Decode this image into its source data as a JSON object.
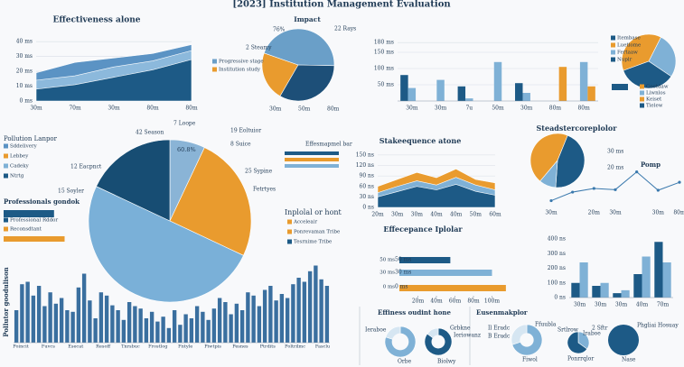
{
  "title": "[2023] Institution Management Evaluation",
  "chart_data": [
    {
      "type": "area",
      "title": "Effectiveness alone",
      "categories": [
        "30m",
        "70m",
        "30m",
        "80m",
        "80m"
      ],
      "series": [
        {
          "color": "#5b93c4",
          "values": [
            19,
            26,
            29,
            32,
            38
          ]
        },
        {
          "color": "#8cb9dc",
          "values": [
            14,
            17,
            23,
            27,
            34
          ]
        },
        {
          "color": "#1d5a86",
          "values": [
            8,
            11,
            16,
            21,
            28
          ]
        }
      ],
      "ylim": [
        0,
        45
      ],
      "yticks": [
        {
          "value": 0,
          "label": "0 ms"
        },
        {
          "value": 10,
          "label": "10 ms"
        },
        {
          "value": 20,
          "label": "20 ms"
        },
        {
          "value": 30,
          "label": "30 ms"
        },
        {
          "value": 40,
          "label": "40 ms"
        }
      ],
      "grid": true
    },
    {
      "type": "pie",
      "title": "Impact",
      "values": [
        22,
        45,
        33
      ],
      "colors": [
        "#e99b2e",
        "#6a9fc8",
        "#1d4f78"
      ],
      "texts": [
        "76%",
        "22 Rays",
        "2 Steamy",
        "30m",
        "50m",
        "80m"
      ],
      "legend": [
        {
          "label": "Progressive stage",
          "color": "#6a9fc8"
        },
        {
          "label": "Institution study",
          "color": "#e99b2e"
        }
      ]
    },
    {
      "type": "bar",
      "categories": [
        "30m",
        "30m",
        "7u",
        "50m",
        "30m",
        "80m",
        "80m"
      ],
      "series": [
        {
          "color": "#1d5a86",
          "values": [
            80,
            0,
            45,
            0,
            55,
            0,
            0
          ]
        },
        {
          "color": "#7fb1d6",
          "values": [
            40,
            65,
            8,
            120,
            25,
            0,
            120
          ]
        },
        {
          "color": "#e99b2e",
          "values": [
            0,
            0,
            0,
            0,
            0,
            105,
            45
          ]
        }
      ],
      "ylim": [
        0,
        200
      ],
      "yticks": [
        {
          "value": 50,
          "label": "50 ms"
        },
        {
          "value": 100,
          "label": "100 ms"
        },
        {
          "value": 150,
          "label": "150 ms"
        },
        {
          "value": 180,
          "label": "180 ms"
        }
      ],
      "grid": true
    },
    {
      "type": "pie",
      "values": [
        38,
        27,
        35
      ],
      "colors": [
        "#e99b2e",
        "#7fb1d6",
        "#1d5a86"
      ],
      "legend": [
        {
          "label": "Itembase",
          "color": "#1d5a86"
        },
        {
          "label": "Luetlome",
          "color": "#e99b2e"
        },
        {
          "label": "Fertaaw",
          "color": "#7fb1d6"
        },
        {
          "label": "Nuplr",
          "color": "#1d5a86"
        },
        {
          "label": "Cootdaw",
          "color": "#e99b2e"
        },
        {
          "label": "Liwnlos",
          "color": "#7fb1d6"
        },
        {
          "label": "Keiset",
          "color": "#e99b2e"
        },
        {
          "label": "Tielew",
          "color": "#1d5a86"
        }
      ]
    },
    {
      "type": "pie",
      "values": [
        7,
        25,
        50,
        18
      ],
      "colors": [
        "#8ab4d6",
        "#e99b2e",
        "#7ab0d8",
        "#174d73"
      ],
      "texts": [
        "42 Season",
        "7 Loope",
        "19 Eoltuior",
        "8 Suice",
        "60.8%",
        "12 Eacpnct",
        "25 Sypine",
        "15 Soyler",
        "Fetrtyes",
        "Pollution Lanpor",
        "Inplolal or hont",
        "Effesmapmel bar"
      ],
      "legend": [
        {
          "label": "Sddelivery",
          "color": "#5b93c4"
        },
        {
          "label": "Lebbey",
          "color": "#e99b2e"
        },
        {
          "label": "Cadeky",
          "color": "#7fb1d6"
        },
        {
          "label": "Ntrtg",
          "color": "#1d5a86"
        },
        {
          "label": "Acceleair",
          "color": "#e99b2e"
        },
        {
          "label": "Ponrevaman Tribe",
          "color": "#e99b2e"
        },
        {
          "label": "Tesrnime Tribe",
          "color": "#1d5a86"
        }
      ]
    },
    {
      "type": "hbar",
      "title": "Professionals gondok",
      "categories": [
        "Professional Rddor",
        "Reconsdtant"
      ],
      "values": [
        62,
        75
      ],
      "colors": [
        "#1d5a86",
        "#e99b2e"
      ],
      "xlim": [
        0,
        80
      ]
    },
    {
      "type": "bar",
      "ylabel": "Pollutor goodulison",
      "color": "#3a6f9f",
      "ylim": [
        0,
        100
      ],
      "values": [
        40,
        72,
        75,
        58,
        70,
        45,
        62,
        48,
        55,
        40,
        38,
        68,
        85,
        52,
        30,
        62,
        58,
        46,
        40,
        28,
        50,
        45,
        42,
        30,
        38,
        26,
        32,
        18,
        40,
        22,
        35,
        30,
        45,
        38,
        28,
        42,
        55,
        50,
        35,
        48,
        40,
        62,
        58,
        45,
        65,
        70,
        52,
        60,
        55,
        72,
        80,
        75,
        88,
        95,
        78,
        70
      ],
      "texts": [
        "Poincit",
        "Fuvcs",
        "Esecat",
        "Resoff",
        "Tnrsbuc",
        "Frostlog",
        "Fntyle",
        "Piwtpis",
        "Pesnes",
        "Ptrdits",
        "Poltrilmc",
        "Fasclu"
      ]
    },
    {
      "type": "area",
      "title": "Stakeequence atone",
      "categories": [
        "20m",
        "30m",
        "30m",
        "40m",
        "40m",
        "50m",
        "60m"
      ],
      "series": [
        {
          "color": "#e99b2e",
          "values": [
            60,
            80,
            100,
            85,
            110,
            80,
            70
          ]
        },
        {
          "color": "#7fb1d6",
          "values": [
            42,
            60,
            76,
            64,
            86,
            64,
            50
          ]
        },
        {
          "color": "#1d5a86",
          "values": [
            30,
            45,
            60,
            50,
            66,
            46,
            35
          ]
        }
      ],
      "ylim": [
        0,
        160
      ],
      "yticks": [
        {
          "value": 0,
          "label": "0 ns"
        },
        {
          "value": 30,
          "label": "30 ns"
        },
        {
          "value": 60,
          "label": "60 ns"
        },
        {
          "value": 90,
          "label": "90 ns"
        },
        {
          "value": 120,
          "label": "120 ns"
        },
        {
          "value": 150,
          "label": "150 ns"
        }
      ],
      "grid": true
    },
    {
      "type": "pie",
      "title": "Steadstercoreplolor",
      "values": [
        45,
        45,
        10
      ],
      "colors": [
        "#e99b2e",
        "#1d5a86",
        "#7fb1d6"
      ]
    },
    {
      "type": "line",
      "title": "Pomp",
      "categories": [
        "30m",
        null,
        "20m",
        "30m",
        null,
        "30m",
        "80m"
      ],
      "series": [
        {
          "color": "#3a79ad",
          "values": [
            8,
            22,
            28,
            26,
            55,
            25,
            38
          ]
        }
      ],
      "ylim": [
        0,
        100
      ],
      "texts": [
        "30 ms",
        "20 ms"
      ]
    },
    {
      "type": "hbar",
      "title": "Effecepance Iplolar",
      "values": [
        55,
        100,
        115
      ],
      "colors": [
        "#1d5a86",
        "#7fb1d6",
        "#e99b2e"
      ],
      "xlim": [
        0,
        120
      ],
      "xticks": [
        {
          "value": 20,
          "label": "20m"
        },
        {
          "value": 40,
          "label": "40m"
        },
        {
          "value": 60,
          "label": "60m"
        },
        {
          "value": 80,
          "label": "80m"
        },
        {
          "value": 100,
          "label": "100m"
        }
      ],
      "texts": [
        "50 ms",
        "30 ms",
        "0 ms"
      ]
    },
    {
      "type": "bar",
      "categories": [
        "30m",
        "30m",
        "30m",
        "40m",
        "70m"
      ],
      "series": [
        {
          "color": "#1d5a86",
          "values": [
            100,
            80,
            30,
            160,
            380
          ]
        },
        {
          "color": "#7fb1d6",
          "values": [
            240,
            100,
            50,
            280,
            240
          ]
        }
      ],
      "ylim": [
        0,
        400
      ],
      "yticks": [
        {
          "value": 0,
          "label": "0 ns"
        },
        {
          "value": 100,
          "label": "100 ns"
        },
        {
          "value": 200,
          "label": "200 ns"
        },
        {
          "value": 300,
          "label": "300 ns"
        },
        {
          "value": 400,
          "label": "400 ns"
        }
      ]
    },
    {
      "type": "pie",
      "title": "Effiness oudint hone",
      "values": [
        80,
        20
      ],
      "colors": [
        "#7fb1d6",
        "#d6e6f2"
      ],
      "hole": 0.55,
      "texts": [
        "Ieraboe",
        "Orbe"
      ]
    },
    {
      "type": "pie",
      "values": [
        85,
        15
      ],
      "colors": [
        "#1d5a86",
        "#d6e6f2"
      ],
      "hole": 0.5,
      "texts": [
        "Grbkne",
        "Ieriowanz",
        "Biolwy"
      ]
    },
    {
      "type": "pie",
      "title": "Eusenmakplor",
      "values": [
        70,
        30
      ],
      "colors": [
        "#7fb1d6",
        "#d6e6f2"
      ],
      "hole": 0.45,
      "texts": [
        "Il Eradc",
        "B Eradc",
        "Ffuubla",
        "Fiwol"
      ]
    },
    {
      "type": "pie",
      "values": [
        35,
        65
      ],
      "colors": [
        "#7fb1d6",
        "#1d5a86"
      ],
      "texts": [
        "Srtlrow",
        "Iraboe",
        "Ponrrqlor"
      ]
    },
    {
      "type": "pie",
      "values": [
        100
      ],
      "colors": [
        "#1d5a86"
      ],
      "texts": [
        "2 Sftr",
        "Phgliai Hosuay",
        "Nase"
      ]
    }
  ]
}
